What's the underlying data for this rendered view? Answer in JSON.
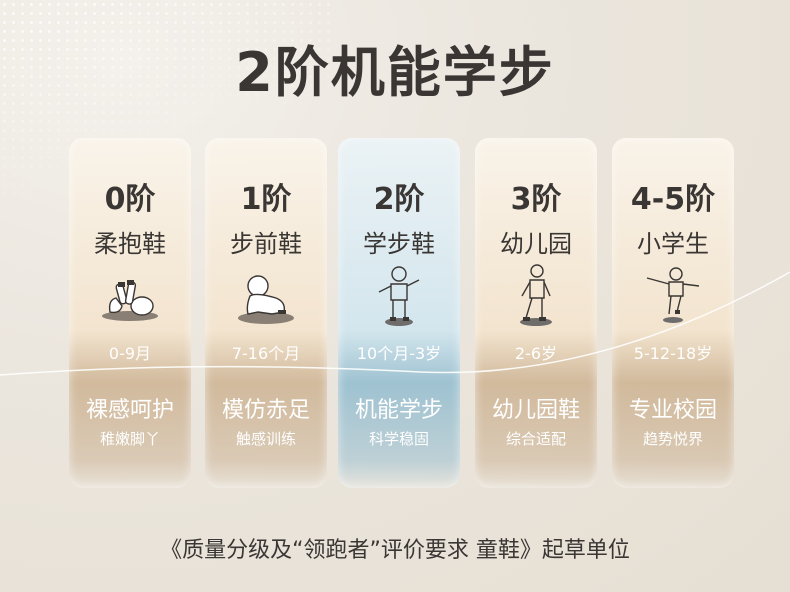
{
  "title": "2阶机能学步",
  "cards": [
    {
      "stage": "0阶",
      "name": "柔抱鞋",
      "icon": "lying-baby-icon",
      "age": "0-9月",
      "feature": "裸感呵护",
      "sub": "稚嫩脚丫"
    },
    {
      "stage": "1阶",
      "name": "步前鞋",
      "icon": "crawling-baby-icon",
      "age": "7-16个月",
      "feature": "模仿赤足",
      "sub": "触感训练"
    },
    {
      "stage": "2阶",
      "name": "学步鞋",
      "icon": "toddler-walking-icon",
      "age": "10个月-3岁",
      "feature": "机能学步",
      "sub": "科学稳固"
    },
    {
      "stage": "3阶",
      "name": "幼儿园",
      "icon": "child-walking-icon",
      "age": "2-6岁",
      "feature": "幼儿园鞋",
      "sub": "综合适配"
    },
    {
      "stage": "4-5阶",
      "name": "小学生",
      "icon": "child-running-icon",
      "age": "5-12-18岁",
      "feature": "专业校园",
      "sub": "趋势悦界"
    }
  ],
  "footer": "《质量分级及“领跑者”评价要求 童鞋》起草单位",
  "colors": {
    "active": "#a9cddc",
    "warm": "#e9d6bb",
    "text": "#3a3634"
  }
}
